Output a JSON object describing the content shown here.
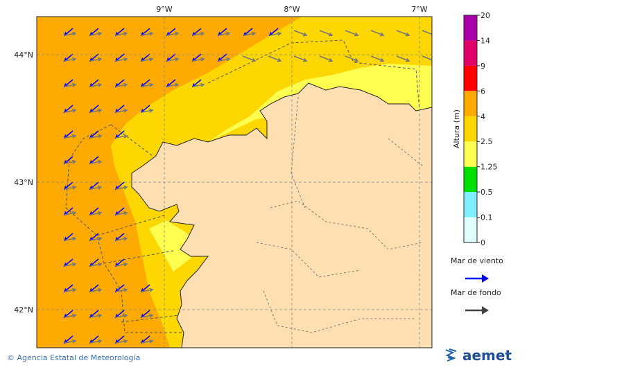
{
  "map": {
    "lon_labels": [
      "9°W",
      "8°W",
      "7°W"
    ],
    "lat_labels": [
      "44°N",
      "43°N",
      "42°N"
    ]
  },
  "colorbar": {
    "title": "Altura (m)",
    "ticks": [
      0,
      0.1,
      0.5,
      1.25,
      2.5,
      4,
      6,
      9,
      14,
      20
    ],
    "colors": [
      "#e0ffff",
      "#80eeff",
      "#00e000",
      "#ffff50",
      "#ffd700",
      "#ffaa00",
      "#ff0000",
      "#e0006a",
      "#aa00aa"
    ]
  },
  "legend": [
    {
      "label": "Mar de viento",
      "color": "#0000ff"
    },
    {
      "label": "Mar de fondo",
      "color": "#404040"
    }
  ],
  "footer": {
    "credit": "© Agencia Estatal de Meteorología",
    "logo": "aemet"
  }
}
